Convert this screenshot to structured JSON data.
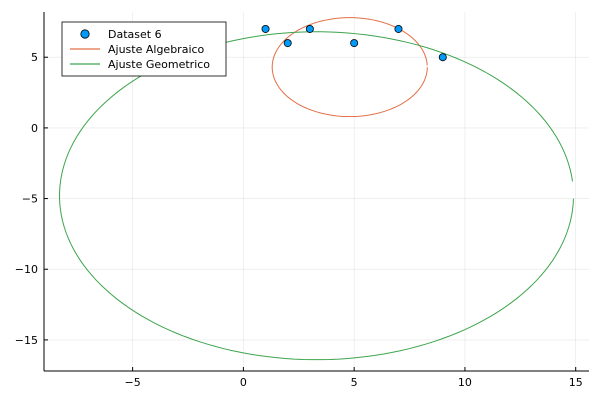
{
  "chart_data": {
    "type": "scatter",
    "title": "",
    "xlabel": "",
    "ylabel": "",
    "xlim": [
      -9,
      15.6
    ],
    "ylim": [
      -17.2,
      8.2
    ],
    "xticks": [
      -5,
      0,
      5,
      10,
      15
    ],
    "yticks": [
      -15,
      -10,
      -5,
      0,
      5
    ],
    "xtick_labels": [
      "−5",
      "0",
      "5",
      "10",
      "15"
    ],
    "ytick_labels": [
      "−15",
      "−10",
      "−5",
      "0",
      "5"
    ],
    "grid": true,
    "legend_position": "top-left",
    "series": [
      {
        "name": "Dataset 6",
        "kind": "scatter",
        "color": "#009AFA",
        "points": [
          [
            1,
            7
          ],
          [
            2,
            6
          ],
          [
            3,
            7
          ],
          [
            5,
            6
          ],
          [
            7,
            7
          ],
          [
            9,
            5
          ]
        ]
      },
      {
        "name": "Ajuste Algebraico",
        "kind": "ellipse-line",
        "color": "#E26F46",
        "ellipse": {
          "cx": 4.8,
          "cy": 4.3,
          "rx": 3.5,
          "ry": 3.5,
          "rotation_deg": 0,
          "start_deg": 2,
          "end_deg": 360
        }
      },
      {
        "name": "Ajuste Geometrico",
        "kind": "ellipse-line",
        "color": "#3DA44D",
        "ellipse": {
          "cx": 3.3,
          "cy": -4.8,
          "rx": 11.6,
          "ry": 11.6,
          "rotation_deg": 0,
          "start_deg": 5,
          "end_deg": 360
        }
      }
    ]
  }
}
